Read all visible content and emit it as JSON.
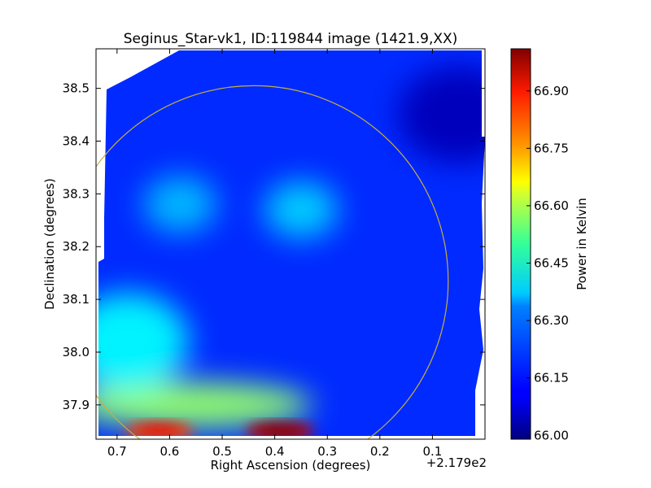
{
  "chart_data": {
    "type": "heatmap",
    "title": "Seginus_Star-vk1, ID:119844 image (1421.9,XX)",
    "xlabel": "Right Ascension (degrees)",
    "ylabel": "Declination (degrees)",
    "x_offset_label": "+2.179e2",
    "xlim": [
      0.74,
      0.0
    ],
    "ylim": [
      37.835,
      38.575
    ],
    "x_ticks": [
      0.7,
      0.6,
      0.5,
      0.4,
      0.3,
      0.2,
      0.1
    ],
    "x_tick_labels": [
      "0.7",
      "0.6",
      "0.5",
      "0.4",
      "0.3",
      "0.2",
      "0.1"
    ],
    "y_ticks": [
      37.9,
      38.0,
      38.1,
      38.2,
      38.3,
      38.4,
      38.5
    ],
    "y_tick_labels": [
      "37.9",
      "38.0",
      "38.1",
      "38.2",
      "38.3",
      "38.4",
      "38.5"
    ],
    "colorbar": {
      "label": "Power in Kelvin",
      "range": [
        65.99,
        67.01
      ],
      "ticks": [
        66.0,
        66.15,
        66.3,
        66.45,
        66.6,
        66.75,
        66.9
      ],
      "tick_labels": [
        "66.00",
        "66.15",
        "66.30",
        "66.45",
        "66.60",
        "66.75",
        "66.90"
      ],
      "colormap": "jet"
    },
    "background_level": 66.16,
    "features": [
      {
        "label": "hot spot",
        "x": 0.62,
        "y": 37.85,
        "value": 66.82
      },
      {
        "label": "hot spot",
        "x": 0.39,
        "y": 37.85,
        "value": 66.95
      },
      {
        "label": "warm band",
        "x": 0.56,
        "y": 37.9,
        "value": 66.52
      },
      {
        "label": "warm region",
        "x": 0.68,
        "y": 38.02,
        "value": 66.36
      },
      {
        "label": "warm patch",
        "x": 0.35,
        "y": 38.27,
        "value": 66.32
      },
      {
        "label": "warm patch",
        "x": 0.58,
        "y": 38.28,
        "value": 66.3
      },
      {
        "label": "cool region",
        "x": 0.05,
        "y": 38.45,
        "value": 66.05
      }
    ],
    "circle": {
      "center_x": 0.44,
      "center_y": 38.135,
      "radius_deg": 0.37,
      "color": "#c8b040"
    }
  }
}
